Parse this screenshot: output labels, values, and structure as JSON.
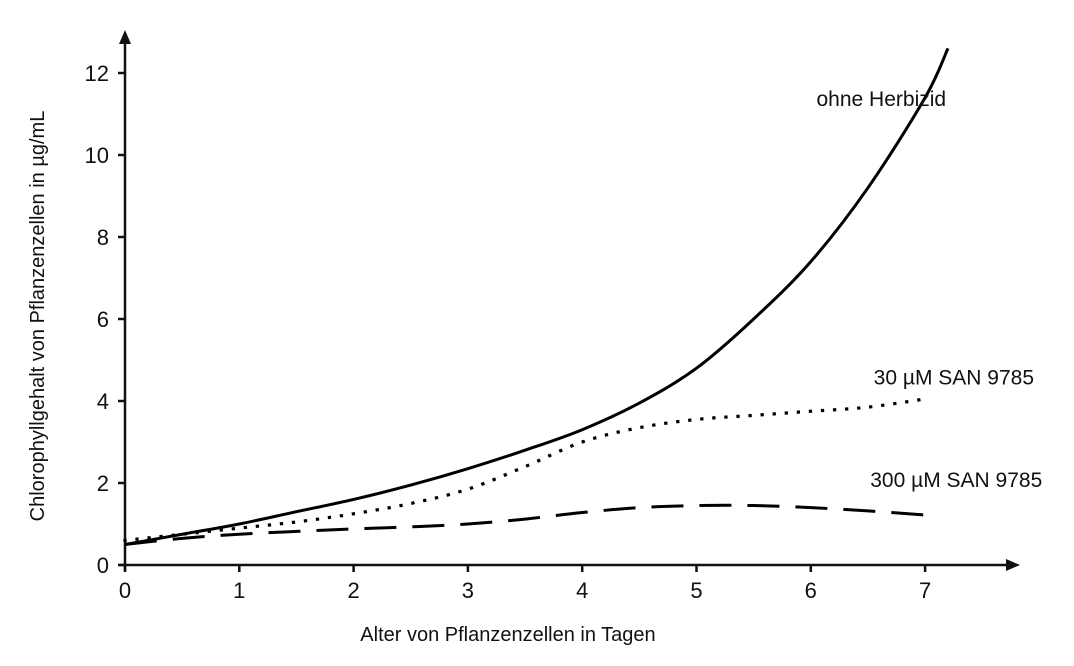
{
  "chart_data": {
    "type": "line",
    "title": "",
    "xlabel": "Alter von Pflanzenzellen in Tagen",
    "ylabel": "Chlorophyllgehalt von Pflanzenzellen in µg/mL",
    "xlim": [
      0,
      7.6
    ],
    "ylim": [
      0,
      13
    ],
    "x_ticks": [
      0,
      1,
      2,
      3,
      4,
      5,
      6,
      7
    ],
    "y_ticks": [
      0,
      2,
      4,
      6,
      8,
      10,
      12
    ],
    "grid": false,
    "legend": "inline labels",
    "series": [
      {
        "name": "ohne Herbizid",
        "style": "solid",
        "x": [
          0,
          0.5,
          1,
          1.5,
          2,
          2.5,
          3,
          3.5,
          4,
          4.5,
          5,
          5.5,
          6,
          6.5,
          7,
          7.2
        ],
        "values": [
          0.5,
          0.75,
          1.0,
          1.3,
          1.6,
          1.95,
          2.35,
          2.8,
          3.3,
          3.95,
          4.8,
          6.0,
          7.4,
          9.2,
          11.4,
          12.6
        ]
      },
      {
        "name": "30 µM SAN 9785",
        "style": "dotted",
        "x": [
          0,
          0.5,
          1,
          1.5,
          2,
          2.5,
          3,
          3.5,
          4,
          4.5,
          5,
          5.5,
          6,
          6.5,
          7
        ],
        "values": [
          0.6,
          0.75,
          0.9,
          1.05,
          1.25,
          1.5,
          1.85,
          2.4,
          3.0,
          3.35,
          3.55,
          3.65,
          3.75,
          3.85,
          4.05
        ]
      },
      {
        "name": "300 µM SAN 9785",
        "style": "dashed",
        "x": [
          0,
          0.5,
          1,
          1.5,
          2,
          2.5,
          3,
          3.5,
          4,
          4.5,
          5,
          5.5,
          6,
          6.5,
          7
        ],
        "values": [
          0.5,
          0.65,
          0.75,
          0.82,
          0.88,
          0.93,
          1.0,
          1.12,
          1.28,
          1.4,
          1.45,
          1.45,
          1.4,
          1.32,
          1.22
        ]
      }
    ],
    "annotations": [
      {
        "text": "ohne Herbizid",
        "x": 6.05,
        "y": 11.2
      },
      {
        "text": "30 µM SAN 9785",
        "x": 6.55,
        "y": 4.4
      },
      {
        "text": "300 µM SAN 9785",
        "x": 6.52,
        "y": 1.9
      }
    ]
  },
  "labels": {
    "xlabel": "Alter von Pflanzenzellen in Tagen",
    "ylabel": "Chlorophyllgehalt von Pflanzenzellen in µg/mL",
    "series_0": "ohne Herbizid",
    "series_1": "30 µM SAN 9785",
    "series_2": "300 µM SAN 9785"
  }
}
